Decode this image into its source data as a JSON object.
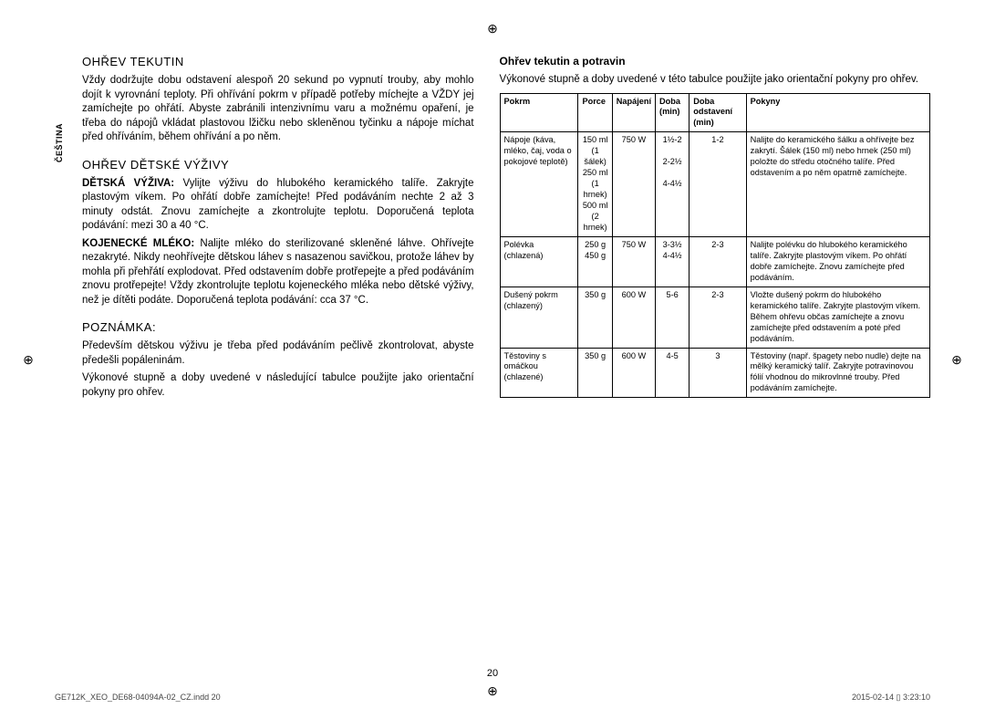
{
  "side_tab": "ČEŠTINA",
  "left": {
    "h1": "OHŘEV TEKUTIN",
    "p1": "Vždy dodržujte dobu odstavení alespoň 20 sekund po vypnutí trouby, aby mohlo dojít k vyrovnání teploty. Při ohřívání pokrm v případě potřeby míchejte a VŽDY jej zamíchejte po ohřátí. Abyste zabránili intenzivnímu varu a možnému opaření, je třeba do nápojů vkládat plastovou lžičku nebo skleněnou tyčinku a nápoje míchat před ohříváním, během ohřívání a po něm.",
    "h2": "OHŘEV DĚTSKÉ VÝŽIVY",
    "p2_bold": "DĚTSKÁ VÝŽIVA:",
    "p2": " Vylijte výživu do hlubokého keramického talíře. Zakryjte plastovým víkem. Po ohřátí dobře zamíchejte! Před podáváním nechte 2 až 3 minuty odstát. Znovu zamíchejte a zkontrolujte teplotu. Doporučená teplota podávání: mezi 30 a 40 °C.",
    "p3_bold": "KOJENECKÉ MLÉKO:",
    "p3": " Nalijte mléko do sterilizované skleněné láhve. Ohřívejte nezakryté. Nikdy neohřívejte dětskou láhev s nasazenou savičkou, protože láhev by mohla při přehřátí explodovat. Před odstavením dobře protřepejte a před podáváním znovu protřepejte! Vždy zkontrolujte teplotu kojeneckého mléka nebo dětské výživy, než je dítěti podáte. Doporučená teplota podávání: cca 37 °C.",
    "h3": "POZNÁMKA:",
    "p4": "Především dětskou výživu je třeba před podáváním pečlivě zkontrolovat, abyste předešli popáleninám.",
    "p5": "Výkonové stupně a doby uvedené v následující tabulce použijte jako orientační pokyny pro ohřev."
  },
  "right": {
    "h": "Ohřev tekutin a potravin",
    "intro": "Výkonové stupně a doby uvedené v této tabulce použijte jako orientační pokyny pro ohřev.",
    "headers": [
      "Pokrm",
      "Porce",
      "Napájení",
      "Doba (min)",
      "Doba odstavení (min)",
      "Pokyny"
    ],
    "rows": [
      {
        "food": "Nápoje (káva, mléko, čaj, voda o pokojové teplotě)",
        "portion": "150 ml\n(1 šálek)\n250 ml\n(1 hrnek)\n500 ml\n(2 hrnek)",
        "power": "750 W",
        "time": "1½-2\n\n2-2½\n\n4-4½",
        "stand": "1-2",
        "instr": "Nalijte do keramického šálku a ohřívejte bez zakrytí. Šálek (150 ml) nebo hrnek (250 ml) položte do středu otočného talíře. Před odstavením a po něm opatrně zamíchejte."
      },
      {
        "food": "Polévka (chlazená)",
        "portion": "250 g\n450 g",
        "power": "750 W",
        "time": "3-3½\n4-4½",
        "stand": "2-3",
        "instr": "Nalijte polévku do hlubokého keramického talíře. Zakryjte plastovým víkem. Po ohřátí dobře zamíchejte. Znovu zamíchejte před podáváním."
      },
      {
        "food": "Dušený pokrm (chlazený)",
        "portion": "350 g",
        "power": "600 W",
        "time": "5-6",
        "stand": "2-3",
        "instr": "Vložte dušený pokrm do hlubokého keramického talíře. Zakryjte plastovým víkem. Během ohřevu občas zamíchejte a znovu zamíchejte před odstavením a poté před podáváním."
      },
      {
        "food": "Těstoviny s omáčkou (chlazené)",
        "portion": "350 g",
        "power": "600 W",
        "time": "4-5",
        "stand": "3",
        "instr": "Těstoviny (např. špagety nebo nudle) dejte na mělký keramický talíř. Zakryjte potravinovou fólií vhodnou do mikrovlnné trouby. Před podáváním zamíchejte."
      }
    ]
  },
  "page_num": "20",
  "footer_left": "GE712K_XEO_DE68-04094A-02_CZ.indd   20",
  "footer_right": "2015-02-14   ▯ 3:23:10"
}
